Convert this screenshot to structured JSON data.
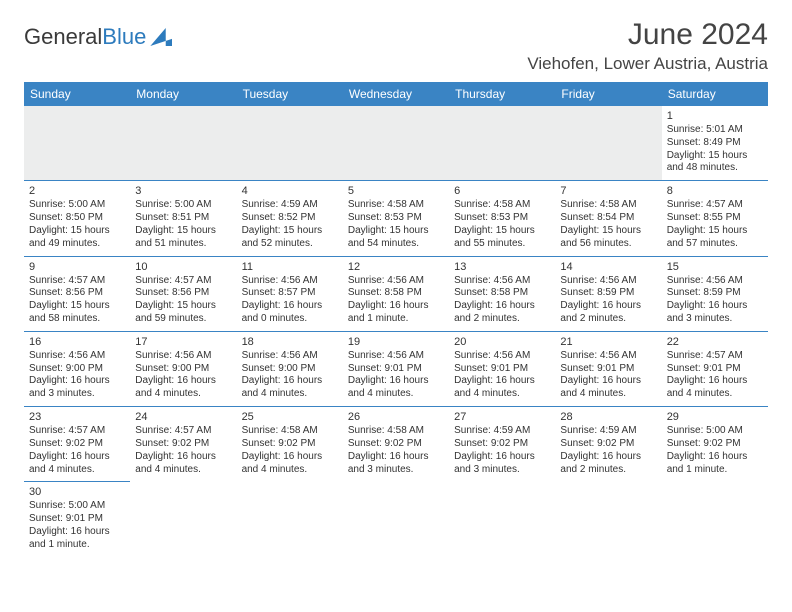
{
  "brand": {
    "part1": "General",
    "part2": "Blue"
  },
  "title": "June 2024",
  "location": "Viehofen, Lower Austria, Austria",
  "colors": {
    "header_bg": "#3a84c4",
    "header_text": "#ffffff",
    "cell_border": "#3a84c4",
    "empty_bg": "#eceded",
    "text": "#333333",
    "brand_accent": "#2d7bbd"
  },
  "dayNames": [
    "Sunday",
    "Monday",
    "Tuesday",
    "Wednesday",
    "Thursday",
    "Friday",
    "Saturday"
  ],
  "weeks": [
    [
      null,
      null,
      null,
      null,
      null,
      null,
      {
        "n": "1",
        "sr": "Sunrise: 5:01 AM",
        "ss": "Sunset: 8:49 PM",
        "dl": "Daylight: 15 hours and 48 minutes."
      }
    ],
    [
      {
        "n": "2",
        "sr": "Sunrise: 5:00 AM",
        "ss": "Sunset: 8:50 PM",
        "dl": "Daylight: 15 hours and 49 minutes."
      },
      {
        "n": "3",
        "sr": "Sunrise: 5:00 AM",
        "ss": "Sunset: 8:51 PM",
        "dl": "Daylight: 15 hours and 51 minutes."
      },
      {
        "n": "4",
        "sr": "Sunrise: 4:59 AM",
        "ss": "Sunset: 8:52 PM",
        "dl": "Daylight: 15 hours and 52 minutes."
      },
      {
        "n": "5",
        "sr": "Sunrise: 4:58 AM",
        "ss": "Sunset: 8:53 PM",
        "dl": "Daylight: 15 hours and 54 minutes."
      },
      {
        "n": "6",
        "sr": "Sunrise: 4:58 AM",
        "ss": "Sunset: 8:53 PM",
        "dl": "Daylight: 15 hours and 55 minutes."
      },
      {
        "n": "7",
        "sr": "Sunrise: 4:58 AM",
        "ss": "Sunset: 8:54 PM",
        "dl": "Daylight: 15 hours and 56 minutes."
      },
      {
        "n": "8",
        "sr": "Sunrise: 4:57 AM",
        "ss": "Sunset: 8:55 PM",
        "dl": "Daylight: 15 hours and 57 minutes."
      }
    ],
    [
      {
        "n": "9",
        "sr": "Sunrise: 4:57 AM",
        "ss": "Sunset: 8:56 PM",
        "dl": "Daylight: 15 hours and 58 minutes."
      },
      {
        "n": "10",
        "sr": "Sunrise: 4:57 AM",
        "ss": "Sunset: 8:56 PM",
        "dl": "Daylight: 15 hours and 59 minutes."
      },
      {
        "n": "11",
        "sr": "Sunrise: 4:56 AM",
        "ss": "Sunset: 8:57 PM",
        "dl": "Daylight: 16 hours and 0 minutes."
      },
      {
        "n": "12",
        "sr": "Sunrise: 4:56 AM",
        "ss": "Sunset: 8:58 PM",
        "dl": "Daylight: 16 hours and 1 minute."
      },
      {
        "n": "13",
        "sr": "Sunrise: 4:56 AM",
        "ss": "Sunset: 8:58 PM",
        "dl": "Daylight: 16 hours and 2 minutes."
      },
      {
        "n": "14",
        "sr": "Sunrise: 4:56 AM",
        "ss": "Sunset: 8:59 PM",
        "dl": "Daylight: 16 hours and 2 minutes."
      },
      {
        "n": "15",
        "sr": "Sunrise: 4:56 AM",
        "ss": "Sunset: 8:59 PM",
        "dl": "Daylight: 16 hours and 3 minutes."
      }
    ],
    [
      {
        "n": "16",
        "sr": "Sunrise: 4:56 AM",
        "ss": "Sunset: 9:00 PM",
        "dl": "Daylight: 16 hours and 3 minutes."
      },
      {
        "n": "17",
        "sr": "Sunrise: 4:56 AM",
        "ss": "Sunset: 9:00 PM",
        "dl": "Daylight: 16 hours and 4 minutes."
      },
      {
        "n": "18",
        "sr": "Sunrise: 4:56 AM",
        "ss": "Sunset: 9:00 PM",
        "dl": "Daylight: 16 hours and 4 minutes."
      },
      {
        "n": "19",
        "sr": "Sunrise: 4:56 AM",
        "ss": "Sunset: 9:01 PM",
        "dl": "Daylight: 16 hours and 4 minutes."
      },
      {
        "n": "20",
        "sr": "Sunrise: 4:56 AM",
        "ss": "Sunset: 9:01 PM",
        "dl": "Daylight: 16 hours and 4 minutes."
      },
      {
        "n": "21",
        "sr": "Sunrise: 4:56 AM",
        "ss": "Sunset: 9:01 PM",
        "dl": "Daylight: 16 hours and 4 minutes."
      },
      {
        "n": "22",
        "sr": "Sunrise: 4:57 AM",
        "ss": "Sunset: 9:01 PM",
        "dl": "Daylight: 16 hours and 4 minutes."
      }
    ],
    [
      {
        "n": "23",
        "sr": "Sunrise: 4:57 AM",
        "ss": "Sunset: 9:02 PM",
        "dl": "Daylight: 16 hours and 4 minutes."
      },
      {
        "n": "24",
        "sr": "Sunrise: 4:57 AM",
        "ss": "Sunset: 9:02 PM",
        "dl": "Daylight: 16 hours and 4 minutes."
      },
      {
        "n": "25",
        "sr": "Sunrise: 4:58 AM",
        "ss": "Sunset: 9:02 PM",
        "dl": "Daylight: 16 hours and 4 minutes."
      },
      {
        "n": "26",
        "sr": "Sunrise: 4:58 AM",
        "ss": "Sunset: 9:02 PM",
        "dl": "Daylight: 16 hours and 3 minutes."
      },
      {
        "n": "27",
        "sr": "Sunrise: 4:59 AM",
        "ss": "Sunset: 9:02 PM",
        "dl": "Daylight: 16 hours and 3 minutes."
      },
      {
        "n": "28",
        "sr": "Sunrise: 4:59 AM",
        "ss": "Sunset: 9:02 PM",
        "dl": "Daylight: 16 hours and 2 minutes."
      },
      {
        "n": "29",
        "sr": "Sunrise: 5:00 AM",
        "ss": "Sunset: 9:02 PM",
        "dl": "Daylight: 16 hours and 1 minute."
      }
    ],
    [
      {
        "n": "30",
        "sr": "Sunrise: 5:00 AM",
        "ss": "Sunset: 9:01 PM",
        "dl": "Daylight: 16 hours and 1 minute."
      },
      null,
      null,
      null,
      null,
      null,
      null
    ]
  ]
}
